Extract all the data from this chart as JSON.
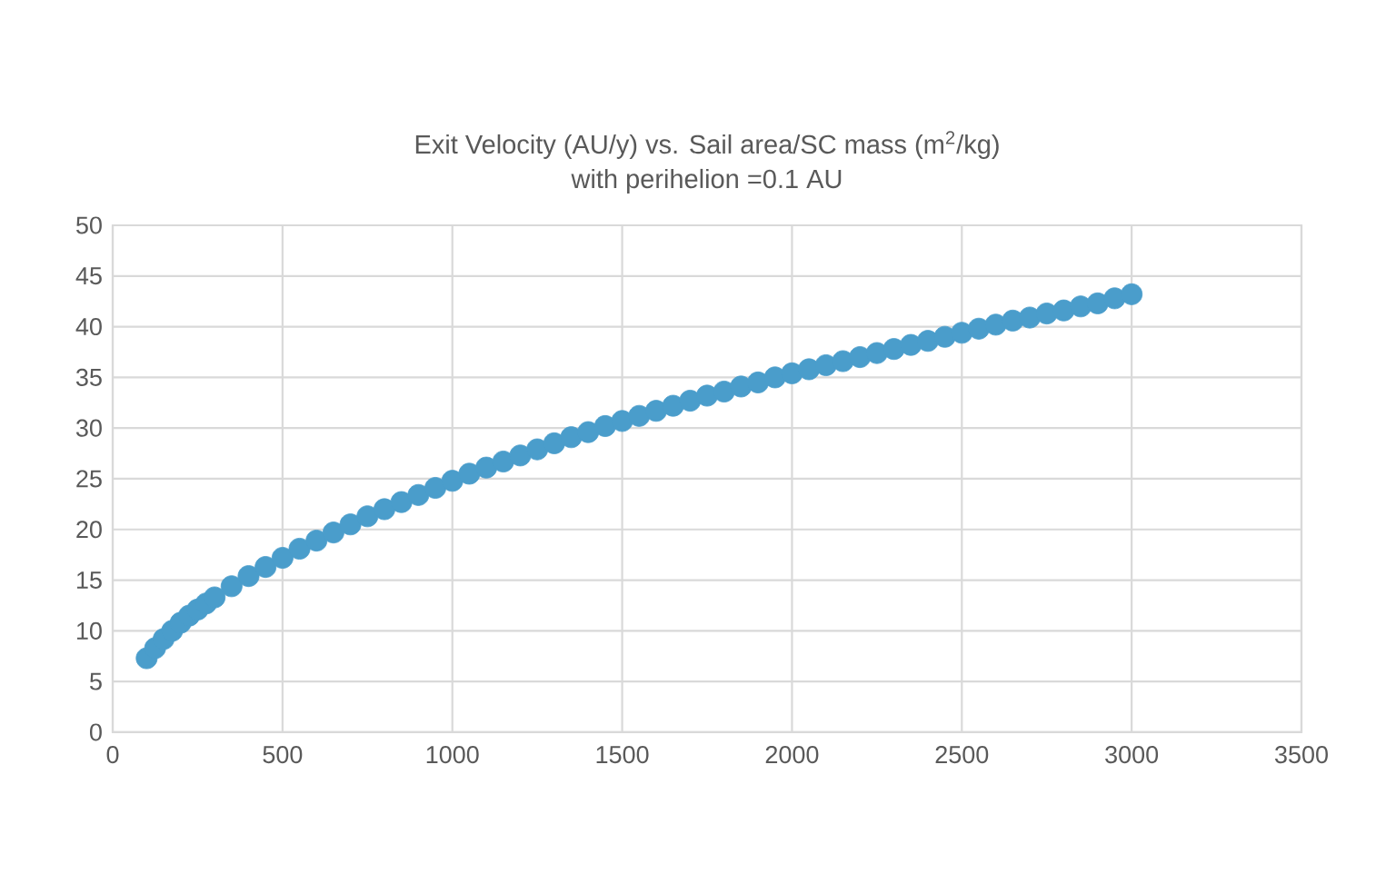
{
  "chart_data": {
    "type": "scatter",
    "title": "Exit Velocity (AU/y) vs. Sail area/SC mass (m$^{2}$/kg)",
    "subtitle": "with perihelion =0.1 AU",
    "x": [
      100,
      125,
      150,
      175,
      200,
      225,
      250,
      275,
      300,
      350,
      400,
      450,
      500,
      550,
      600,
      650,
      700,
      750,
      800,
      850,
      900,
      950,
      1000,
      1050,
      1100,
      1150,
      1200,
      1250,
      1300,
      1350,
      1400,
      1450,
      1500,
      1550,
      1600,
      1650,
      1700,
      1750,
      1800,
      1850,
      1900,
      1950,
      2000,
      2050,
      2100,
      2150,
      2200,
      2250,
      2300,
      2350,
      2400,
      2450,
      2500,
      2550,
      2600,
      2650,
      2700,
      2750,
      2800,
      2850,
      2900,
      2950,
      3000
    ],
    "series": [
      {
        "color": "#4a9dcb",
        "values": [
          7.3,
          8.3,
          9.2,
          10.0,
          10.8,
          11.5,
          12.1,
          12.7,
          13.3,
          14.4,
          15.4,
          16.3,
          17.2,
          18.1,
          18.9,
          19.7,
          20.5,
          21.3,
          22.0,
          22.7,
          23.4,
          24.1,
          24.8,
          25.5,
          26.1,
          26.7,
          27.3,
          27.9,
          28.5,
          29.1,
          29.6,
          30.2,
          30.7,
          31.2,
          31.7,
          32.2,
          32.7,
          33.2,
          33.6,
          34.1,
          34.5,
          35.0,
          35.4,
          35.8,
          36.2,
          36.6,
          37.0,
          37.4,
          37.8,
          38.2,
          38.6,
          39.0,
          39.4,
          39.8,
          40.2,
          40.6,
          40.9,
          41.3,
          41.6,
          42.0,
          42.3,
          42.8,
          43.2
        ]
      }
    ],
    "xlim": [
      0,
      3500
    ],
    "ylim": [
      0,
      50
    ],
    "xticks": [
      0,
      500,
      1000,
      1500,
      2000,
      2500,
      3000,
      3500
    ],
    "yticks": [
      0,
      5,
      10,
      15,
      20,
      25,
      30,
      35,
      40,
      45,
      50
    ],
    "grid": true
  }
}
